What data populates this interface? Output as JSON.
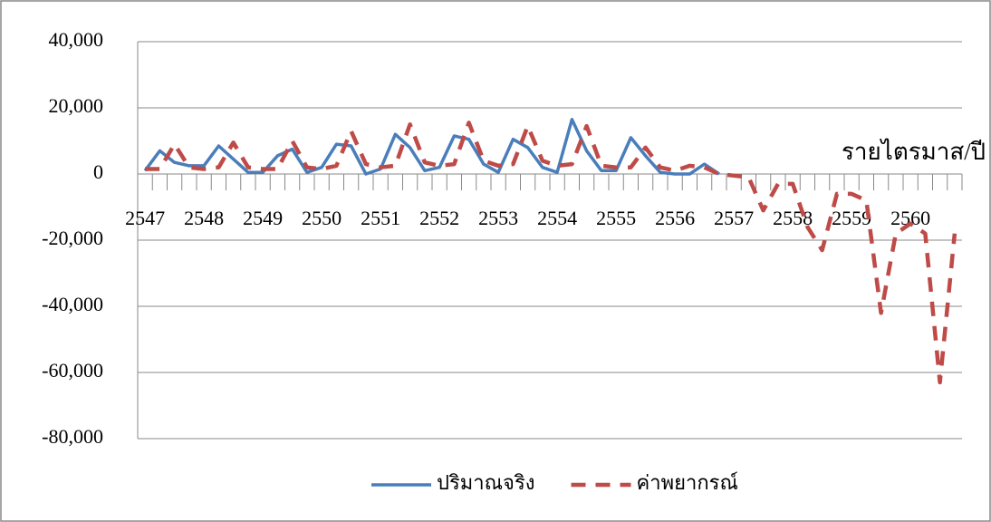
{
  "chart_data": {
    "type": "line",
    "x_label": "รายไตรมาส/ปี",
    "categories": [
      "2547",
      null,
      null,
      null,
      "2548",
      null,
      null,
      null,
      "2549",
      null,
      null,
      null,
      "2550",
      null,
      null,
      null,
      "2551",
      null,
      null,
      null,
      "2552",
      null,
      null,
      null,
      "2553",
      null,
      null,
      null,
      "2554",
      null,
      null,
      null,
      "2555",
      null,
      null,
      null,
      "2556",
      null,
      null,
      null,
      "2557",
      null,
      null,
      null,
      "2558",
      null,
      null,
      null,
      "2559",
      null,
      null,
      null,
      "2560",
      null,
      null,
      null
    ],
    "series": [
      {
        "name": "ปริมาณจริง",
        "color": "#4a7ebb",
        "dashed": false,
        "values": [
          1000,
          7000,
          3500,
          2500,
          2500,
          8500,
          4500,
          500,
          500,
          5500,
          7500,
          500,
          2000,
          9000,
          8500,
          0,
          1500,
          12000,
          8000,
          1000,
          2000,
          11500,
          10500,
          3000,
          500,
          10500,
          8000,
          2000,
          500,
          16500,
          7000,
          1000,
          1000,
          11000,
          5500,
          500,
          0,
          0,
          3000,
          0,
          null,
          null,
          null,
          null,
          null,
          null,
          null,
          null,
          null,
          null,
          null,
          null,
          null,
          null,
          null,
          null
        ]
      },
      {
        "name": "ค่าพยากรณ์",
        "color": "#be4b48",
        "dashed": true,
        "values": [
          1500,
          1500,
          9000,
          2000,
          1500,
          2000,
          9500,
          2000,
          1500,
          1500,
          10000,
          2000,
          1500,
          2500,
          13000,
          3000,
          2000,
          2500,
          15000,
          3500,
          2500,
          3000,
          15500,
          4000,
          2500,
          3000,
          14500,
          4000,
          2500,
          3000,
          14500,
          2500,
          2000,
          2000,
          8000,
          2000,
          1000,
          2500,
          2000,
          0,
          -500,
          -1000,
          -11000,
          -3000,
          -3000,
          -16000,
          -23000,
          -6000,
          -6000,
          -8000,
          -42000,
          -18000,
          -15000,
          -18000,
          -63000,
          -18000
        ]
      }
    ],
    "ylim": [
      -80000,
      40000
    ],
    "yticks": [
      {
        "value": -80000,
        "label": "-80,000"
      },
      {
        "value": -60000,
        "label": "-60,000"
      },
      {
        "value": -40000,
        "label": "-40,000"
      },
      {
        "value": -20000,
        "label": "-20,000"
      },
      0,
      {
        "value": 20000,
        "label": "20,000"
      },
      {
        "value": 40000,
        "label": "40,000"
      }
    ],
    "grid": true,
    "legend": "bottom"
  }
}
